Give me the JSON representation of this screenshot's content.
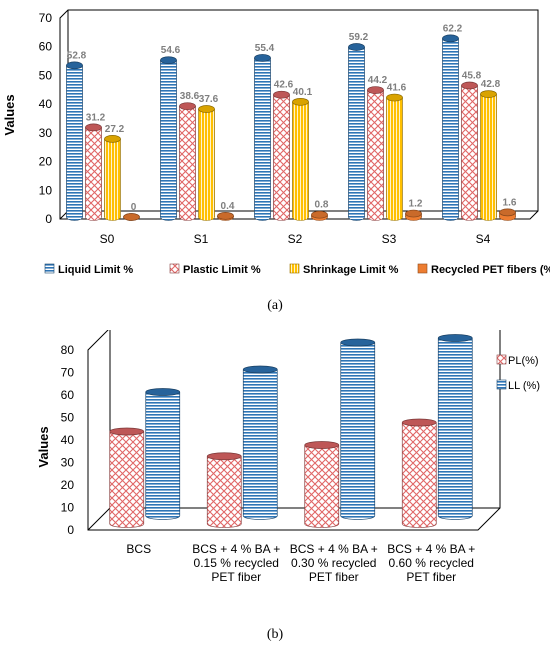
{
  "chart_data": [
    {
      "type": "bar",
      "caption": "(a)",
      "categories": [
        "S0",
        "S1",
        "S2",
        "S3",
        "S4"
      ],
      "ylabel": "Values",
      "ylim": [
        0,
        70
      ],
      "yticks": [
        0,
        10,
        20,
        30,
        40,
        50,
        60,
        70
      ],
      "grid": false,
      "legend_position": "bottom",
      "series": [
        {
          "name": "Liquid Limit %",
          "values": [
            52.8,
            54.6,
            55.4,
            59.2,
            62.2
          ],
          "value_labels": [
            "52.8",
            "54.6",
            "55.4",
            "59.2",
            "62.2"
          ],
          "color": "#2e75b6",
          "pattern": "horizontal-stripes"
        },
        {
          "name": "Plastic Limit %",
          "values": [
            31.2,
            38.6,
            42.6,
            44.2,
            45.8
          ],
          "value_labels": [
            "31.2",
            "38.6",
            "42.6",
            "44.2",
            "45.8"
          ],
          "color": "#e06666",
          "pattern": "crosshatch"
        },
        {
          "name": "Shrinkage Limit %",
          "values": [
            27.2,
            37.6,
            40.1,
            41.6,
            42.8
          ],
          "value_labels": [
            "27.2",
            "37.6",
            "40.1",
            "41.6",
            "42.8"
          ],
          "color": "#ffc000",
          "pattern": "vertical-stripes"
        },
        {
          "name": "Recycled PET fibers (%)",
          "values": [
            0,
            0.4,
            0.8,
            1.2,
            1.6
          ],
          "value_labels": [
            "0",
            "0.4",
            "0.8",
            "1.2",
            "1.6"
          ],
          "color": "#ed7d31",
          "pattern": "solid"
        }
      ]
    },
    {
      "type": "bar",
      "caption": "(b)",
      "categories": [
        [
          "BCS"
        ],
        [
          "BCS + 4 % BA +",
          "0.15 %  recycled",
          "PET fiber"
        ],
        [
          "BCS + 4 % BA +",
          "0.30 % recycled",
          "PET fiber"
        ],
        [
          "BCS + 4 % BA +",
          "0.60 % recycled",
          "PET fiber"
        ]
      ],
      "ylabel": "Values",
      "ylim": [
        0,
        80
      ],
      "yticks": [
        0,
        10,
        20,
        30,
        40,
        50,
        60,
        70,
        80
      ],
      "grid": false,
      "legend_position": "right",
      "series": [
        {
          "name": "PL(%)",
          "values": [
            42,
            31,
            36,
            46
          ],
          "color": "#e06666",
          "pattern": "crosshatch"
        },
        {
          "name": "LL (%)",
          "values": [
            56,
            66,
            78,
            80
          ],
          "color": "#2e75b6",
          "pattern": "horizontal-stripes"
        }
      ]
    }
  ]
}
